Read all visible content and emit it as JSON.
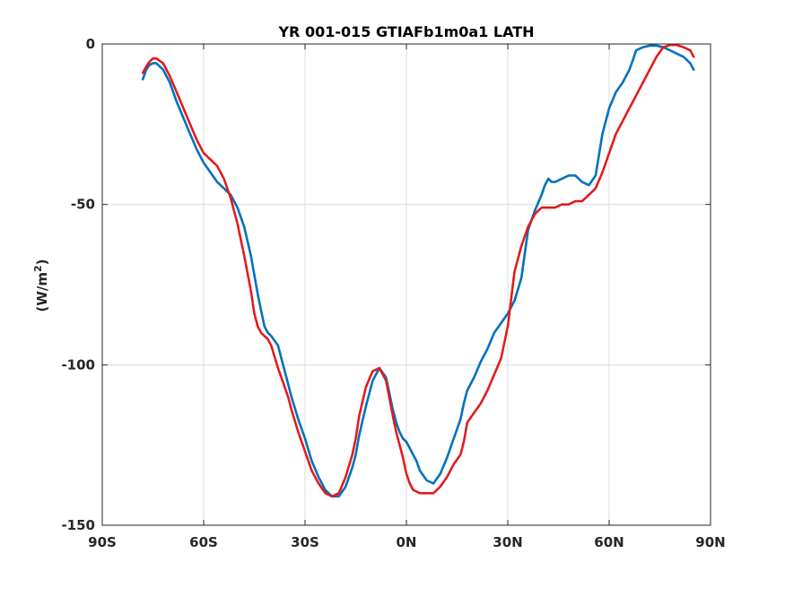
{
  "chart_data": {
    "type": "line",
    "title": "YR 001-015 GTIAFb1m0a1 LATH",
    "xlabel": "",
    "ylabel": "(W/m",
    "ylabel_sup": "2",
    "ylabel_close": ")",
    "xlim": [
      -90,
      90
    ],
    "ylim": [
      -150,
      0
    ],
    "x_ticks": [
      -90,
      -60,
      -30,
      0,
      30,
      60,
      90
    ],
    "x_tick_labels": [
      "90S",
      "60S",
      "30S",
      "0N",
      "30N",
      "60N",
      "90N"
    ],
    "y_ticks": [
      0,
      -50,
      -100,
      -150
    ],
    "y_tick_labels": [
      "0",
      "-50",
      "-100",
      "-150"
    ],
    "grid": true,
    "series": [
      {
        "color": "#0072bd",
        "style": "solid",
        "x": [
          -78,
          -77,
          -76,
          -75,
          -74,
          -72,
          -70,
          -68,
          -66,
          -64,
          -62,
          -60,
          -58,
          -56,
          -54,
          -52,
          -50,
          -48,
          -46,
          -45,
          -44,
          -43,
          -42,
          -41,
          -40,
          -38,
          -36,
          -35,
          -34,
          -32,
          -30,
          -28,
          -26,
          -24,
          -22,
          -20,
          -18,
          -16,
          -15,
          -14,
          -12,
          -10,
          -8,
          -6,
          -4,
          -3,
          -2,
          -1,
          0,
          1,
          2,
          3,
          4,
          6,
          8,
          10,
          12,
          14,
          16,
          17,
          18,
          20,
          22,
          24,
          26,
          28,
          30,
          32,
          34,
          36,
          38,
          40,
          41,
          42,
          43,
          44,
          46,
          48,
          50,
          52,
          54,
          56,
          58,
          60,
          62,
          64,
          65,
          66,
          67,
          68,
          70,
          72,
          74,
          76,
          78,
          80,
          82,
          84,
          85
        ],
        "y": [
          -11,
          -8,
          -6.5,
          -6,
          -6,
          -8,
          -12,
          -18,
          -23,
          -28,
          -33,
          -37,
          -40,
          -43,
          -45,
          -47,
          -51,
          -57,
          -66,
          -72,
          -78,
          -83,
          -88,
          -90,
          -91,
          -94,
          -102,
          -106,
          -110,
          -117,
          -123,
          -130,
          -135,
          -139,
          -141,
          -141,
          -138,
          -132,
          -128,
          -122,
          -113,
          -105,
          -101,
          -104,
          -114,
          -118,
          -121,
          -123,
          -124,
          -126,
          -128,
          -130,
          -133,
          -136,
          -137,
          -134,
          -129,
          -123,
          -117,
          -112,
          -108,
          -104,
          -99,
          -95,
          -90,
          -87,
          -84,
          -80,
          -73,
          -58,
          -52,
          -47,
          -44,
          -42,
          -43,
          -43,
          -42,
          -41,
          -41,
          -43,
          -44,
          -41,
          -28,
          -20,
          -15,
          -12,
          -10,
          -8,
          -5,
          -2,
          -1,
          -0.5,
          -0.5,
          -1,
          -2,
          -3,
          -4,
          -6,
          -8
        ],
        "x_note": "",
        "name": ""
      },
      {
        "color": "#e31a1c",
        "style": "dashed",
        "x": [
          -78,
          -77,
          -76,
          -75,
          -74,
          -72,
          -70,
          -68,
          -66,
          -64,
          -62,
          -60,
          -58,
          -56,
          -54,
          -52,
          -50,
          -48,
          -46,
          -45,
          -44,
          -43,
          -42,
          -41,
          -40,
          -38,
          -36,
          -35,
          -34,
          -32,
          -30,
          -28,
          -26,
          -24,
          -22,
          -20,
          -18,
          -16,
          -15,
          -14,
          -12,
          -10,
          -8,
          -6,
          -4,
          -3,
          -2,
          -1,
          0,
          1,
          2,
          4,
          6,
          8,
          10,
          12,
          14,
          16,
          17,
          18,
          20,
          22,
          24,
          26,
          28,
          30,
          32,
          34,
          36,
          38,
          40,
          41,
          42,
          43,
          44,
          46,
          48,
          50,
          52,
          54,
          56,
          58,
          60,
          62,
          64,
          66,
          68,
          70,
          72,
          74,
          76,
          78,
          80,
          82,
          84,
          85
        ],
        "y": [
          -9,
          -7,
          -5.5,
          -4.5,
          -4.5,
          -6,
          -10,
          -15,
          -20,
          -25,
          -30,
          -34,
          -36,
          -38,
          -42,
          -48,
          -56,
          -66,
          -77,
          -84,
          -88,
          -90,
          -91,
          -92,
          -94,
          -101,
          -107,
          -110,
          -114,
          -121,
          -127,
          -133,
          -137,
          -140,
          -141,
          -140,
          -135,
          -128,
          -123,
          -116,
          -107,
          -102,
          -101,
          -105,
          -116,
          -121,
          -125,
          -129,
          -134,
          -137,
          -139,
          -140,
          -140,
          -140,
          -138,
          -135,
          -131,
          -128,
          -124,
          -118,
          -115,
          -112,
          -108,
          -103,
          -98,
          -88,
          -71,
          -63,
          -57,
          -53,
          -51,
          -51,
          -51,
          -51,
          -51,
          -50,
          -50,
          -49,
          -49,
          -47,
          -45,
          -40,
          -34,
          -28,
          -24,
          -20,
          -16,
          -12,
          -8,
          -4,
          -1,
          -0.3,
          -0.3,
          -1,
          -2,
          -4
        ],
        "name": ""
      }
    ]
  }
}
